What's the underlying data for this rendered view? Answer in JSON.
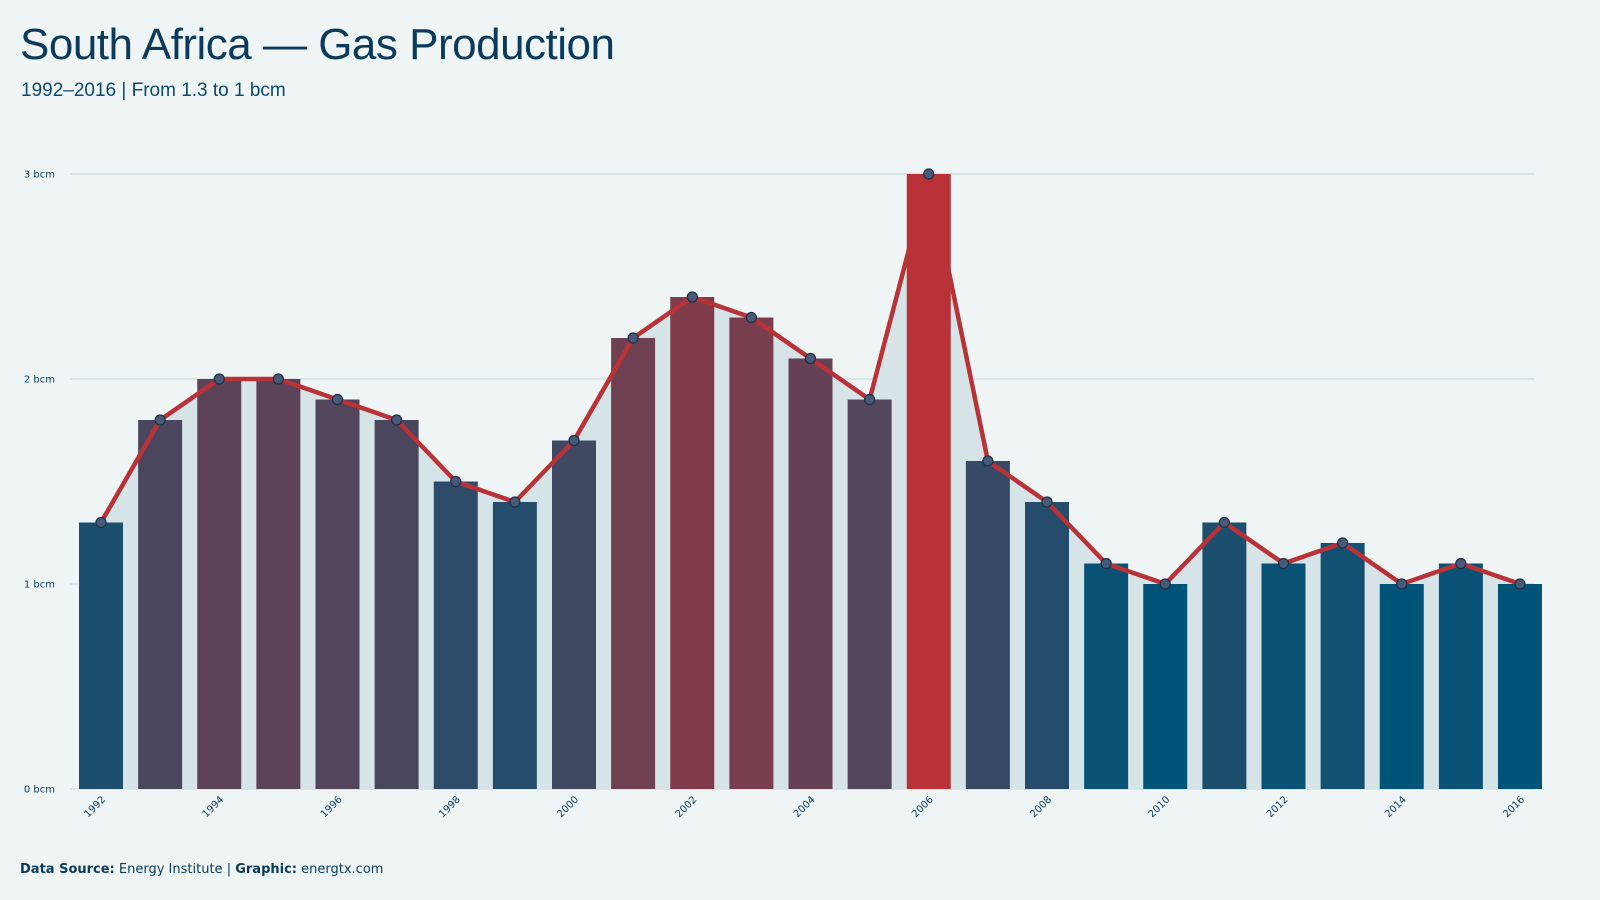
{
  "title": "South Africa — Gas Production",
  "subtitle": "1992–2016 | From 1.3 to 1 bcm",
  "footer": {
    "source_label": "Data Source:",
    "source_value": "Energy Institute",
    "separator": "|",
    "graphic_label": "Graphic:",
    "graphic_value": "energtx.com"
  },
  "colors": {
    "background": "#eff5f5",
    "area_fill": "#d6e4e8",
    "line": "#b83238",
    "low_bar": "#005478",
    "high_bar": "#b83238",
    "gridline": "#d3e0e3",
    "text": "#0b3a5c"
  },
  "chart_data": {
    "type": "bar",
    "categories": [
      "1992",
      "1993",
      "1994",
      "1995",
      "1996",
      "1997",
      "1998",
      "1999",
      "2000",
      "2001",
      "2002",
      "2003",
      "2004",
      "2005",
      "2006",
      "2007",
      "2008",
      "2009",
      "2010",
      "2011",
      "2012",
      "2013",
      "2014",
      "2015",
      "2016"
    ],
    "values": [
      1.3,
      1.8,
      2.0,
      2.0,
      1.9,
      1.8,
      1.5,
      1.4,
      1.7,
      2.2,
      2.4,
      2.3,
      2.1,
      1.9,
      3.0,
      1.6,
      1.4,
      1.1,
      1.0,
      1.3,
      1.1,
      1.2,
      1.0,
      1.1,
      1.0
    ],
    "x_tick_labels": [
      "1992",
      "1994",
      "1996",
      "1998",
      "2000",
      "2002",
      "2004",
      "2006",
      "2008",
      "2010",
      "2012",
      "2014",
      "2016"
    ],
    "y_ticks": [
      0,
      1,
      2,
      3
    ],
    "y_tick_labels": [
      "0 bcm",
      "1 bcm",
      "2 bcm",
      "3 bcm"
    ],
    "ylim": [
      0,
      3
    ],
    "overlay": "line with markers over filled area",
    "grid": "horizontal",
    "xlabel": "",
    "ylabel": ""
  }
}
